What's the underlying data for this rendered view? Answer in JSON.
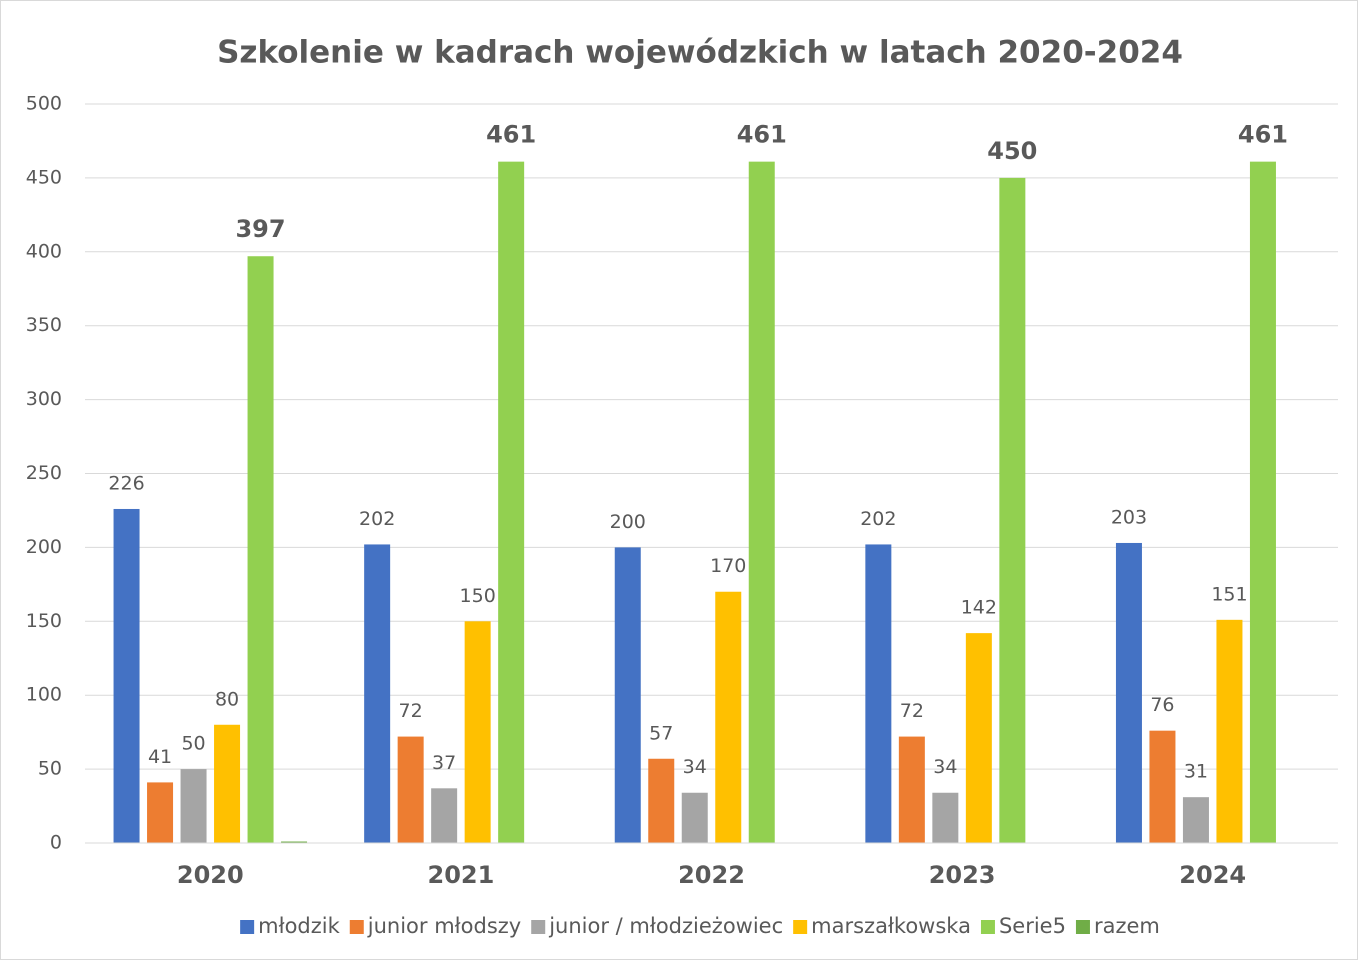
{
  "chart_data": {
    "type": "bar",
    "title": "Szkolenie w kadrach wojewódzkich w latach 2020-2024",
    "categories": [
      "2020",
      "2021",
      "2022",
      "2023",
      "2024"
    ],
    "series": [
      {
        "name": "młodzik",
        "color": "#4472c4",
        "values": [
          226,
          202,
          200,
          202,
          203
        ],
        "labels": true
      },
      {
        "name": "junior młodszy",
        "color": "#ed7d31",
        "values": [
          41,
          72,
          57,
          72,
          76
        ],
        "labels": true
      },
      {
        "name": "junior / młodzieżowiec",
        "color": "#a5a5a5",
        "values": [
          50,
          37,
          34,
          34,
          31
        ],
        "labels": true
      },
      {
        "name": "marszałkowska",
        "color": "#ffc000",
        "values": [
          80,
          150,
          170,
          142,
          151
        ],
        "labels": true
      },
      {
        "name": "Serie5",
        "color": "#92d050",
        "values": [
          397,
          461,
          461,
          450,
          461
        ],
        "labels": true,
        "label_bold": true
      },
      {
        "name": "razem",
        "color": "#70ad47",
        "values": [
          1,
          null,
          null,
          null,
          null
        ],
        "labels": false
      }
    ],
    "ylim": [
      0,
      500
    ],
    "yticks": [
      0,
      50,
      100,
      150,
      200,
      250,
      300,
      350,
      400,
      450,
      500
    ],
    "grid": true,
    "legend": "bottom"
  }
}
